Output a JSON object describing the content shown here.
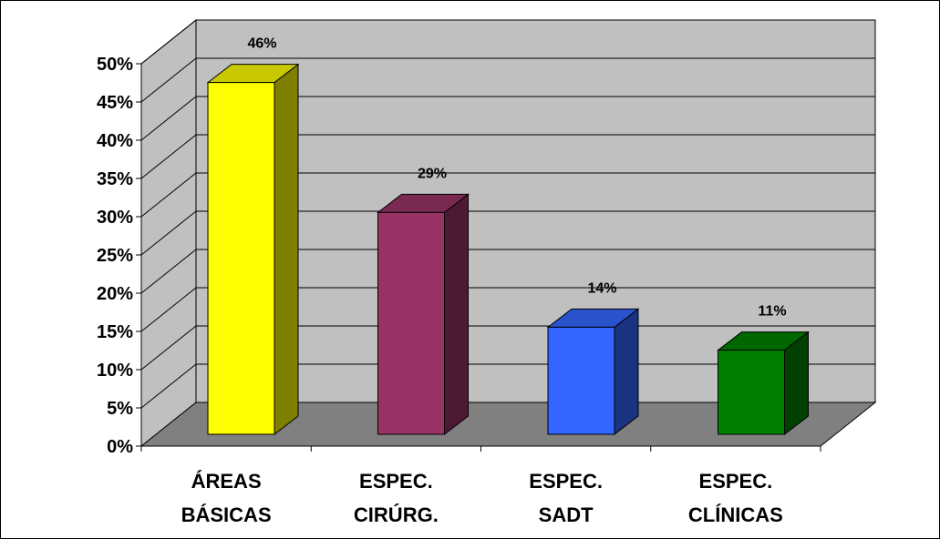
{
  "chart_data": {
    "type": "bar",
    "three_d": true,
    "title": "",
    "xlabel": "",
    "ylabel": "",
    "ylim": [
      0,
      50
    ],
    "y_tick_step": 5,
    "y_tick_labels": [
      "0%",
      "5%",
      "10%",
      "15%",
      "20%",
      "25%",
      "30%",
      "35%",
      "40%",
      "45%",
      "50%"
    ],
    "grid": true,
    "legend": "none",
    "categories": [
      [
        "ÁREAS",
        "BÁSICAS"
      ],
      [
        "ESPEC.",
        "CIRÚRG."
      ],
      [
        "ESPEC.",
        "SADT"
      ],
      [
        "ESPEC.",
        "CLÍNICAS"
      ]
    ],
    "values": [
      46,
      29,
      14,
      11
    ],
    "data_labels": [
      "46%",
      "29%",
      "14%",
      "11%"
    ],
    "colors": [
      {
        "front": "#ffff00",
        "side": "#808000",
        "top": "#c8c800"
      },
      {
        "front": "#993366",
        "side": "#4d1a33",
        "top": "#7a2952"
      },
      {
        "front": "#3366ff",
        "side": "#1a3380",
        "top": "#2952cc"
      },
      {
        "front": "#008000",
        "side": "#004000",
        "top": "#006600"
      }
    ],
    "wall_color": "#c0c0c0",
    "floor_color": "#808080"
  }
}
